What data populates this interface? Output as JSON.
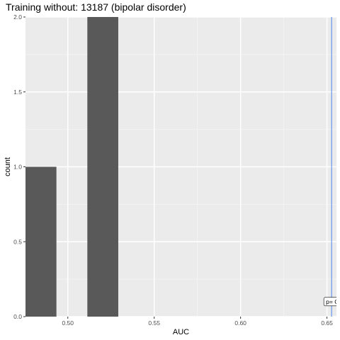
{
  "chart_data": {
    "type": "bar",
    "title": "Training without: 13187 (bipolar disorder)",
    "xlabel": "AUC",
    "ylabel": "count",
    "bins": [
      {
        "x0": 0.4755,
        "x1": 0.4934,
        "count": 1
      },
      {
        "x0": 0.5113,
        "x1": 0.5292,
        "count": 2
      }
    ],
    "xlim": [
      0.4755,
      0.6555
    ],
    "ylim": [
      0,
      2.0
    ],
    "x_ticks": [
      0.5,
      0.55,
      0.6,
      0.65
    ],
    "x_tick_labels": [
      "0.50",
      "0.55",
      "0.60",
      "0.65"
    ],
    "y_ticks": [
      0.0,
      0.5,
      1.0,
      1.5,
      2.0
    ],
    "y_tick_labels": [
      "0.0",
      "0.5",
      "1.0",
      "1.5",
      "2.0"
    ],
    "vline": {
      "x": 0.6527,
      "color": "#6495ed"
    },
    "annotation": {
      "text": "p= C",
      "x": 0.6527,
      "y": 0.1
    },
    "colors": {
      "bar": "#595959",
      "panel": "#ebebeb",
      "grid": "#ffffff"
    },
    "grid": true
  }
}
